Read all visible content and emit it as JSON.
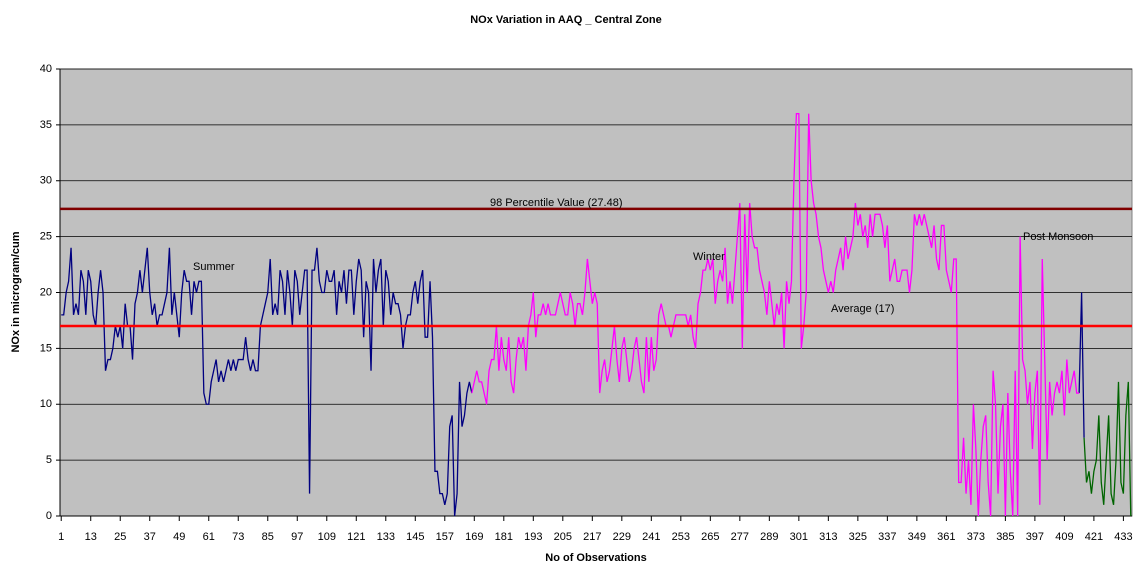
{
  "chart_data": {
    "type": "line",
    "title": "NOx Variation in AAQ _ Central Zone",
    "xlabel": "No of Observations",
    "ylabel": "NOx in microgram/cum",
    "xlim": [
      0.5,
      436.5
    ],
    "xticks": [
      1,
      13,
      25,
      37,
      49,
      61,
      73,
      85,
      97,
      109,
      121,
      133,
      145,
      157,
      169,
      181,
      193,
      205,
      217,
      229,
      241,
      253,
      265,
      277,
      289,
      301,
      313,
      325,
      337,
      349,
      361,
      373,
      385,
      397,
      409,
      421,
      433
    ],
    "ylim": [
      0,
      40
    ],
    "yticks": [
      0,
      5,
      10,
      15,
      20,
      25,
      30,
      35,
      40
    ],
    "grid": true,
    "background": "#c0c0c0",
    "reference_lines": [
      {
        "label": "98 Percentile Value (27.48)",
        "value": 27.48,
        "color": "#800000"
      },
      {
        "label": "Average (17)",
        "value": 17,
        "color": "#ff0000"
      }
    ],
    "annotations": [
      "Summer",
      "Winter",
      "Post Monsoon"
    ],
    "series": [
      {
        "color": "#000080",
        "x": [
          1,
          2,
          3,
          4,
          5,
          6,
          7,
          8,
          9,
          10,
          11,
          12,
          13,
          14,
          15,
          16,
          17,
          18,
          19,
          20,
          21,
          22,
          23,
          24,
          25,
          26,
          27,
          28,
          29,
          30,
          31,
          32,
          33,
          34,
          35,
          36,
          37,
          38,
          39,
          40,
          41,
          42,
          43,
          44,
          45,
          46,
          47,
          48,
          49,
          50,
          51,
          52,
          53,
          54,
          55,
          56,
          57,
          58,
          59,
          60,
          61,
          62,
          63,
          64,
          65,
          66,
          67,
          68,
          69,
          70,
          71,
          72,
          73,
          74,
          75,
          76,
          77,
          78,
          79,
          80,
          81,
          82,
          83,
          84,
          85,
          86,
          87,
          88,
          89,
          90,
          91,
          92,
          93,
          94,
          95,
          96,
          97,
          98,
          99,
          100,
          101,
          102,
          103,
          104,
          105,
          106,
          107,
          108,
          109,
          110,
          111,
          112,
          113,
          114,
          115,
          116,
          117,
          118,
          119,
          120,
          121,
          122,
          123,
          124,
          125,
          126,
          127,
          128,
          129,
          130,
          131,
          132,
          133,
          134,
          135,
          136,
          137,
          138,
          139,
          140,
          141,
          142,
          143,
          144,
          145,
          146,
          147,
          148,
          149,
          150,
          151,
          152,
          153,
          154,
          155,
          156,
          157,
          158,
          159,
          160,
          161,
          162,
          163,
          164,
          165,
          166,
          167,
          168,
          169,
          415,
          416,
          417
        ],
        "values": [
          18,
          18,
          20,
          21,
          24,
          18,
          19,
          18,
          22,
          21,
          18,
          22,
          21,
          18,
          17,
          20,
          22,
          20,
          13,
          14,
          14,
          15,
          17,
          16,
          17,
          15,
          19,
          17,
          17,
          14,
          19,
          20,
          22,
          20,
          22,
          24,
          20,
          18,
          19,
          17,
          18,
          18,
          19,
          20,
          24,
          18,
          20,
          18,
          16,
          20,
          22,
          21,
          21,
          18,
          21,
          20,
          21,
          21,
          11,
          10,
          10,
          12,
          13,
          14,
          12,
          13,
          12,
          13,
          14,
          13,
          14,
          13,
          14,
          14,
          14,
          16,
          14,
          13,
          14,
          13,
          13,
          17,
          18,
          19,
          20,
          23,
          18,
          19,
          18,
          22,
          21,
          18,
          22,
          20,
          17,
          22,
          21,
          18,
          20,
          22,
          22,
          2,
          22,
          22,
          24,
          21,
          20,
          20,
          22,
          21,
          21,
          22,
          18,
          21,
          20,
          22,
          19,
          22,
          22,
          18,
          21,
          23,
          22,
          16,
          21,
          20,
          13,
          23,
          20,
          22,
          23,
          17,
          22,
          21,
          18,
          20,
          19,
          19,
          18,
          15,
          17,
          18,
          18,
          20,
          21,
          19,
          21,
          22,
          16,
          16,
          21,
          16,
          4,
          4,
          2,
          2,
          1,
          2,
          8,
          9,
          0,
          2,
          12,
          8,
          9,
          11,
          12,
          11,
          null,
          11,
          20,
          7
        ]
      },
      {
        "color": "#ff00ff",
        "x": [
          168,
          169,
          170,
          171,
          172,
          173,
          174,
          175,
          176,
          177,
          178,
          179,
          180,
          181,
          182,
          183,
          184,
          185,
          186,
          187,
          188,
          189,
          190,
          191,
          192,
          193,
          194,
          195,
          196,
          197,
          198,
          199,
          200,
          201,
          202,
          203,
          204,
          205,
          206,
          207,
          208,
          209,
          210,
          211,
          212,
          213,
          214,
          215,
          216,
          217,
          218,
          219,
          220,
          221,
          222,
          223,
          224,
          225,
          226,
          227,
          228,
          229,
          230,
          231,
          232,
          233,
          234,
          235,
          236,
          237,
          238,
          239,
          240,
          241,
          242,
          243,
          244,
          245,
          246,
          247,
          248,
          249,
          250,
          251,
          252,
          253,
          254,
          255,
          256,
          257,
          258,
          259,
          260,
          261,
          262,
          263,
          264,
          265,
          266,
          267,
          268,
          269,
          270,
          271,
          272,
          273,
          274,
          275,
          276,
          277,
          278,
          279,
          280,
          281,
          282,
          283,
          284,
          285,
          286,
          287,
          288,
          289,
          290,
          291,
          292,
          293,
          294,
          295,
          296,
          297,
          298,
          299,
          300,
          301,
          302,
          303,
          304,
          305,
          306,
          307,
          308,
          309,
          310,
          311,
          312,
          313,
          314,
          315,
          316,
          317,
          318,
          319,
          320,
          321,
          322,
          323,
          324,
          325,
          326,
          327,
          328,
          329,
          330,
          331,
          332,
          333,
          334,
          335,
          336,
          337,
          338,
          339,
          340,
          341,
          342,
          343,
          344,
          345,
          346,
          347,
          348,
          349,
          350,
          351,
          352,
          353,
          354,
          355,
          356,
          357,
          358,
          359,
          360,
          361,
          362,
          363,
          364,
          365,
          366,
          367,
          368,
          369,
          370,
          371,
          372,
          373,
          374,
          375,
          376,
          377,
          378,
          379,
          380,
          381,
          382,
          383,
          384,
          385,
          386,
          387,
          388,
          389,
          390,
          391,
          392,
          393,
          394,
          395,
          396,
          397,
          398,
          399,
          400,
          401,
          402,
          403,
          404,
          405,
          406,
          407,
          408,
          409,
          410,
          411,
          412,
          413,
          414,
          415
        ],
        "values": [
          11,
          12,
          13,
          12,
          12,
          11,
          10,
          13,
          14,
          14,
          17,
          13,
          16,
          14,
          13,
          16,
          12,
          11,
          14,
          16,
          15,
          16,
          13,
          17,
          18,
          20,
          16,
          18,
          18,
          19,
          18,
          19,
          18,
          18,
          18,
          19,
          20,
          19,
          18,
          18,
          20,
          19,
          17,
          19,
          19,
          18,
          20,
          23,
          21,
          19,
          20,
          19,
          11,
          13,
          14,
          12,
          13,
          15,
          17,
          14,
          12,
          15,
          16,
          14,
          12,
          13,
          15,
          16,
          14,
          12,
          11,
          16,
          12,
          16,
          13,
          14,
          18,
          19,
          18,
          17,
          17,
          16,
          17,
          18,
          18,
          18,
          18,
          18,
          17,
          18,
          16,
          15,
          19,
          20,
          22,
          22,
          23,
          22,
          23,
          19,
          21,
          22,
          21,
          24,
          19,
          21,
          19,
          22,
          25,
          28,
          15,
          27,
          20,
          28,
          25,
          24,
          24,
          22,
          21,
          20,
          18,
          21,
          19,
          17,
          19,
          18,
          20,
          15,
          21,
          19,
          21,
          30,
          36,
          36,
          15,
          17,
          20,
          36,
          30,
          28,
          27,
          25,
          24,
          22,
          21,
          20,
          21,
          20,
          22,
          23,
          24,
          22,
          25,
          23,
          24,
          25,
          28,
          26,
          27,
          25,
          26,
          24,
          27,
          25,
          27,
          27,
          27,
          26,
          24,
          26,
          21,
          22,
          23,
          21,
          21,
          22,
          22,
          22,
          20,
          22,
          27,
          26,
          27,
          26,
          27,
          26,
          25,
          24,
          26,
          23,
          22,
          26,
          26,
          22,
          21,
          20,
          23,
          23,
          3,
          3,
          7,
          2,
          5,
          1,
          10,
          6,
          0,
          5,
          8,
          9,
          3,
          0,
          13,
          10,
          2,
          8,
          10,
          0,
          11,
          4,
          0,
          13,
          0,
          25,
          14,
          13,
          10,
          12,
          6,
          11,
          13,
          1,
          23,
          14,
          5,
          12,
          9,
          11,
          12,
          11,
          13,
          9,
          14,
          11,
          12,
          13,
          11,
          11
        ]
      },
      {
        "color": "#006400",
        "x": [
          417,
          418,
          419,
          420,
          421,
          422,
          423,
          424,
          425,
          426,
          427,
          428,
          429,
          430,
          431,
          432,
          433,
          434,
          435,
          436
        ],
        "values": [
          7,
          3,
          4,
          2,
          4,
          5,
          9,
          3,
          1,
          5,
          9,
          2,
          1,
          5,
          12,
          3,
          2,
          9,
          12,
          0
        ]
      }
    ]
  }
}
